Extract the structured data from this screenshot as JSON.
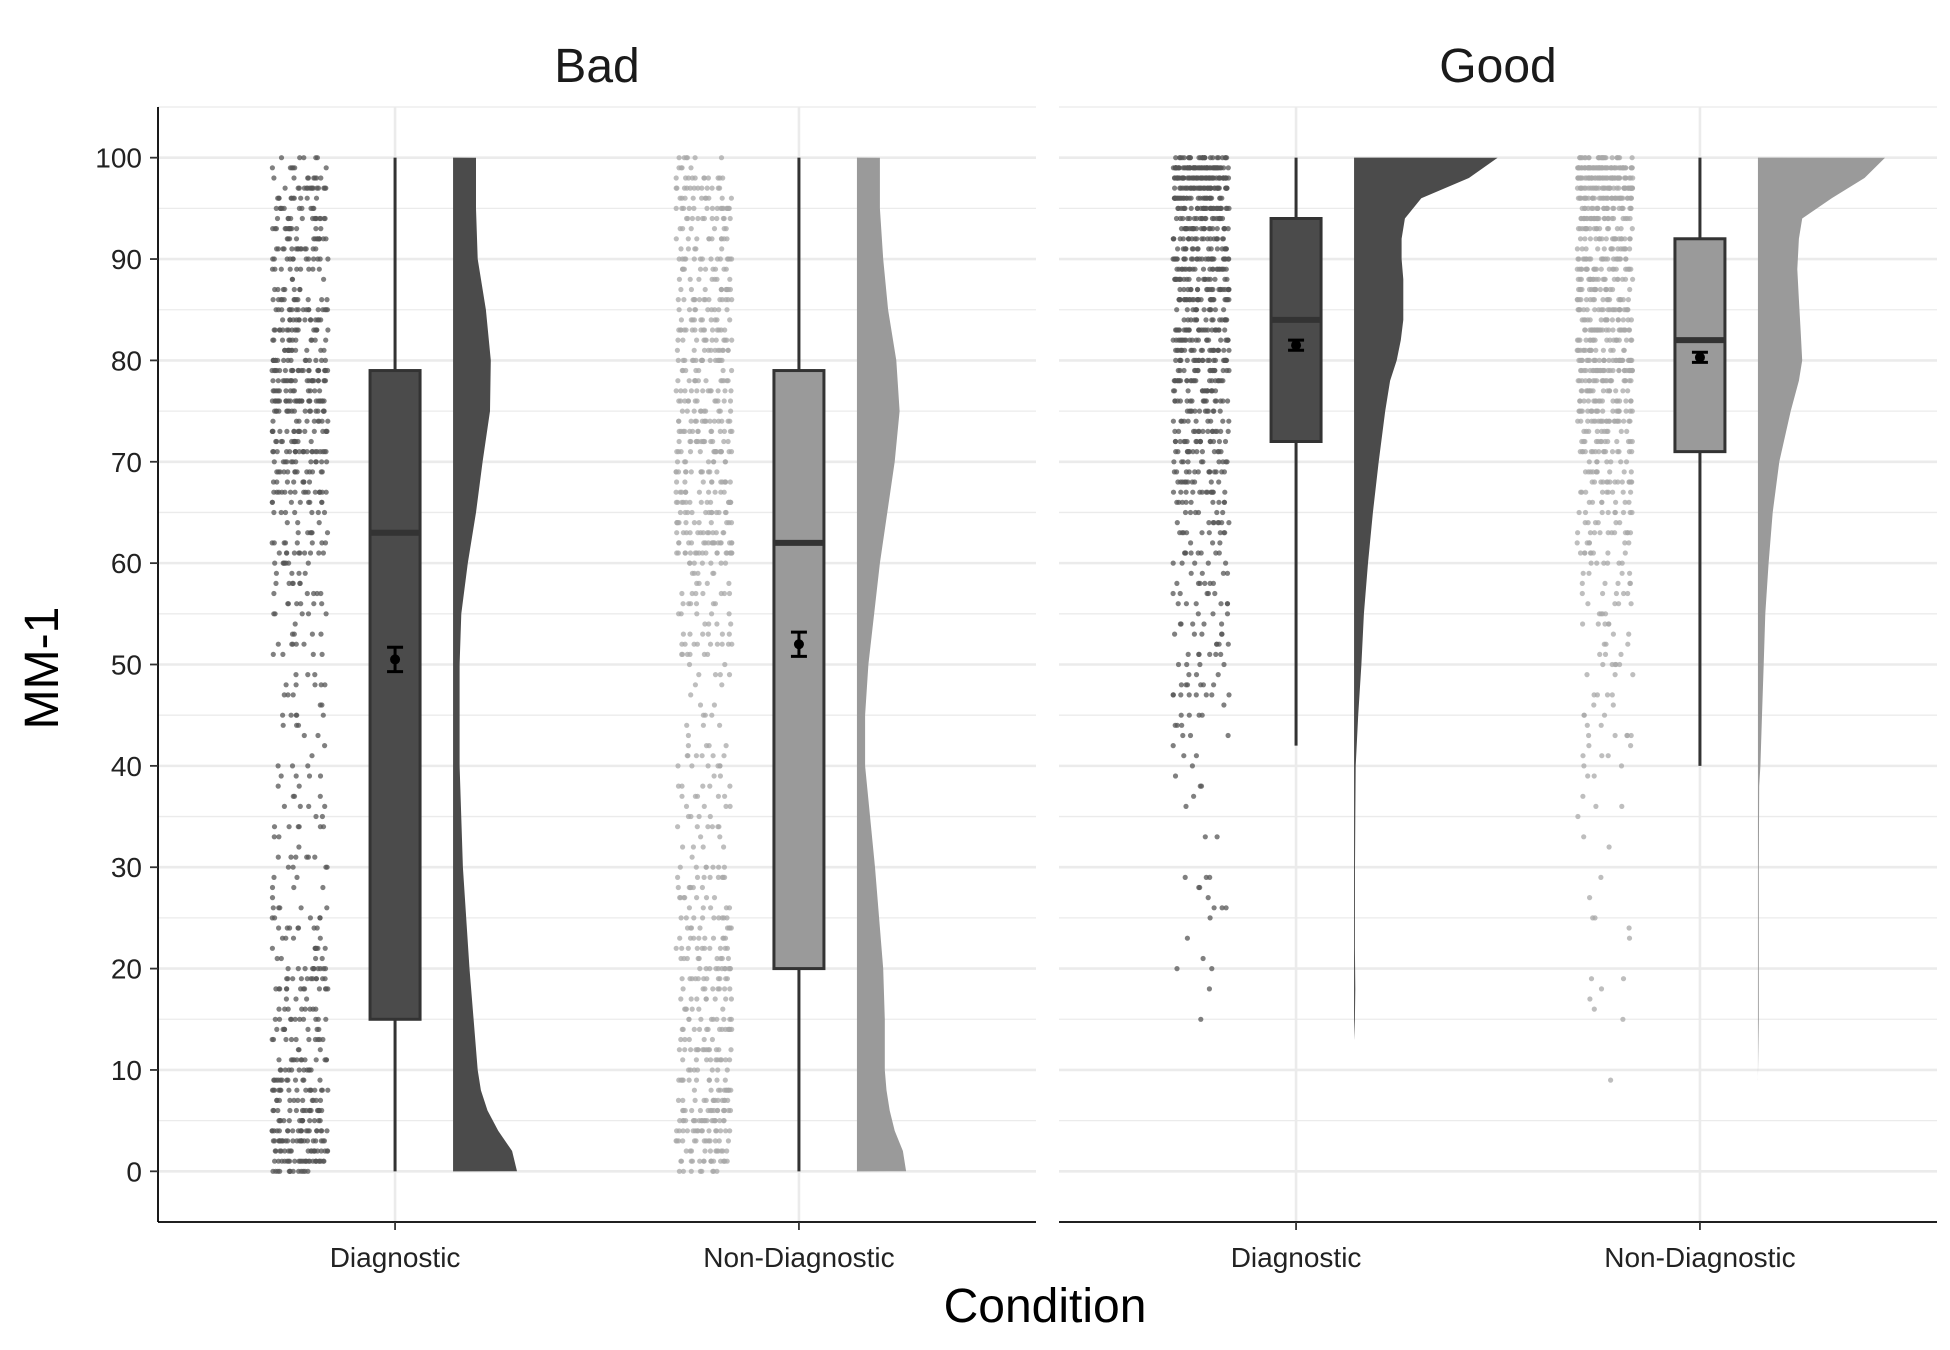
{
  "chart_data": {
    "type": "raincloud",
    "xlabel": "Condition",
    "ylabel": "MM-1",
    "ylim": [
      -5,
      105
    ],
    "y_breaks": [
      0,
      10,
      20,
      30,
      40,
      50,
      60,
      70,
      80,
      90,
      100
    ],
    "y_tick_labels": [
      "0",
      "10",
      "20",
      "30",
      "40",
      "50",
      "60",
      "70",
      "80",
      "90",
      "100"
    ],
    "colors": {
      "Diagnostic": "#4b4b4b",
      "Non-Diagnostic": "#9a9a9a",
      "point_Diagnostic": "#555555",
      "point_Non-Diagnostic": "#a8a8a8",
      "box_line": "#333333",
      "mean_marker": "#000000"
    },
    "panels": [
      {
        "label": "Bad",
        "groups": [
          {
            "name": "Diagnostic",
            "box": {
              "min": 0,
              "q1": 15,
              "median": 63,
              "q3": 79,
              "max": 100
            },
            "mean": 50.5,
            "mean_ci": [
              49.3,
              51.7
            ],
            "density": [
              [
                0,
                0.78
              ],
              [
                2,
                0.72
              ],
              [
                4,
                0.55
              ],
              [
                6,
                0.42
              ],
              [
                8,
                0.34
              ],
              [
                10,
                0.3
              ],
              [
                15,
                0.25
              ],
              [
                20,
                0.2
              ],
              [
                30,
                0.12
              ],
              [
                40,
                0.08
              ],
              [
                50,
                0.08
              ],
              [
                55,
                0.1
              ],
              [
                60,
                0.18
              ],
              [
                65,
                0.28
              ],
              [
                70,
                0.36
              ],
              [
                75,
                0.45
              ],
              [
                80,
                0.46
              ],
              [
                85,
                0.4
              ],
              [
                90,
                0.3
              ],
              [
                95,
                0.28
              ],
              [
                100,
                0.28
              ]
            ]
          },
          {
            "name": "Non-Diagnostic",
            "box": {
              "min": 0,
              "q1": 20,
              "median": 62,
              "q3": 79,
              "max": 100
            },
            "mean": 52,
            "mean_ci": [
              50.8,
              53.2
            ],
            "density": [
              [
                0,
                0.6
              ],
              [
                2,
                0.56
              ],
              [
                4,
                0.46
              ],
              [
                6,
                0.4
              ],
              [
                8,
                0.36
              ],
              [
                10,
                0.34
              ],
              [
                15,
                0.34
              ],
              [
                20,
                0.32
              ],
              [
                30,
                0.22
              ],
              [
                40,
                0.1
              ],
              [
                45,
                0.1
              ],
              [
                50,
                0.14
              ],
              [
                60,
                0.28
              ],
              [
                70,
                0.46
              ],
              [
                75,
                0.52
              ],
              [
                80,
                0.48
              ],
              [
                85,
                0.38
              ],
              [
                90,
                0.32
              ],
              [
                95,
                0.28
              ],
              [
                100,
                0.28
              ]
            ]
          }
        ]
      },
      {
        "label": "Good",
        "groups": [
          {
            "name": "Diagnostic",
            "box": {
              "min": 42,
              "q1": 72,
              "median": 84,
              "q3": 94,
              "max": 100
            },
            "mean": 81.5,
            "mean_ci": [
              81,
              82
            ],
            "density": [
              [
                13,
                0.0
              ],
              [
                15,
                0.01
              ],
              [
                18,
                0.015
              ],
              [
                22,
                0.01
              ],
              [
                30,
                0.012
              ],
              [
                35,
                0.015
              ],
              [
                40,
                0.02
              ],
              [
                45,
                0.05
              ],
              [
                50,
                0.09
              ],
              [
                55,
                0.12
              ],
              [
                60,
                0.17
              ],
              [
                65,
                0.23
              ],
              [
                70,
                0.3
              ],
              [
                75,
                0.38
              ],
              [
                78,
                0.44
              ],
              [
                80,
                0.52
              ],
              [
                82,
                0.57
              ],
              [
                84,
                0.6
              ],
              [
                86,
                0.6
              ],
              [
                88,
                0.6
              ],
              [
                90,
                0.58
              ],
              [
                92,
                0.58
              ],
              [
                94,
                0.62
              ],
              [
                96,
                0.82
              ],
              [
                98,
                1.4
              ],
              [
                100,
                1.75
              ]
            ]
          },
          {
            "name": "Non-Diagnostic",
            "box": {
              "min": 40,
              "q1": 71,
              "median": 82,
              "q3": 92,
              "max": 100
            },
            "mean": 80.3,
            "mean_ci": [
              79.8,
              80.8
            ],
            "density": [
              [
                9,
                0.0
              ],
              [
                15,
                0.01
              ],
              [
                20,
                0.01
              ],
              [
                30,
                0.01
              ],
              [
                38,
                0.015
              ],
              [
                40,
                0.03
              ],
              [
                45,
                0.05
              ],
              [
                50,
                0.07
              ],
              [
                55,
                0.09
              ],
              [
                60,
                0.13
              ],
              [
                65,
                0.18
              ],
              [
                70,
                0.26
              ],
              [
                75,
                0.4
              ],
              [
                78,
                0.5
              ],
              [
                80,
                0.54
              ],
              [
                83,
                0.52
              ],
              [
                86,
                0.5
              ],
              [
                89,
                0.48
              ],
              [
                92,
                0.5
              ],
              [
                94,
                0.54
              ],
              [
                96,
                0.9
              ],
              [
                98,
                1.3
              ],
              [
                100,
                1.55
              ]
            ]
          }
        ]
      }
    ]
  }
}
